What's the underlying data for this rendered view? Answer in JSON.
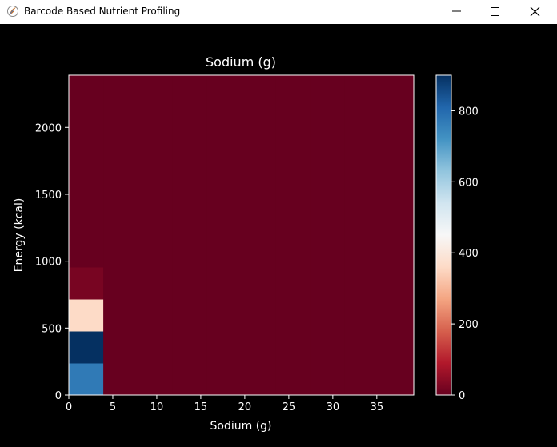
{
  "window": {
    "title": "Barcode Based Nutrient Profiling",
    "app_icon": "feather-logo-icon",
    "controls": {
      "minimize": "minimize-icon",
      "maximize": "maximize-icon",
      "close": "close-icon"
    }
  },
  "chart_data": {
    "type": "heatmap",
    "title": "Sodium (g)",
    "xlabel": "Sodium (g)",
    "ylabel": "Energy (kcal)",
    "colormap": "RdBu",
    "xlim": [
      0,
      39.2
    ],
    "ylim": [
      0,
      2390
    ],
    "x_ticks": [
      0,
      5,
      10,
      15,
      20,
      25,
      30,
      35
    ],
    "y_ticks": [
      0,
      500,
      1000,
      1500,
      2000
    ],
    "x_edges": [
      0,
      3.92,
      7.84,
      11.76,
      15.68,
      19.6,
      23.52,
      27.44,
      31.36,
      35.28,
      39.2
    ],
    "y_edges": [
      0,
      239,
      478,
      717,
      956,
      1195,
      1434,
      1673,
      1912,
      2151,
      2390
    ],
    "counts": [
      [
        770,
        0,
        0,
        0,
        0,
        0,
        0,
        0,
        0,
        0
      ],
      [
        900,
        0,
        0,
        0,
        0,
        0,
        0,
        0,
        0,
        0
      ],
      [
        360,
        0,
        0,
        0,
        0,
        0,
        0,
        0,
        0,
        0
      ],
      [
        20,
        0,
        0,
        0,
        0,
        0,
        0,
        0,
        0,
        0
      ],
      [
        0,
        0,
        0,
        0,
        0,
        0,
        0,
        0,
        0,
        0
      ],
      [
        0,
        0,
        0,
        0,
        0,
        0,
        0,
        0,
        0,
        0
      ],
      [
        0,
        0,
        0,
        0,
        0,
        0,
        0,
        0,
        0,
        0
      ],
      [
        0,
        0,
        0,
        0,
        0,
        0,
        0,
        0,
        0,
        0
      ],
      [
        0,
        0,
        0,
        0,
        0,
        0,
        0,
        0,
        0,
        0
      ],
      [
        0,
        0,
        0,
        0,
        0,
        0,
        0,
        0,
        0,
        0
      ]
    ],
    "colorbar": {
      "range": [
        0,
        900
      ],
      "ticks": [
        0,
        200,
        400,
        600,
        800
      ]
    },
    "grid": false
  },
  "colors": {
    "background": "#000000",
    "axes_edge": "#ffffff",
    "text": "#ffffff",
    "cmap_stops": [
      "#67001f",
      "#b2182b",
      "#d6604d",
      "#f4a582",
      "#fddbc7",
      "#f7f7f7",
      "#d1e5f0",
      "#92c5de",
      "#4393c3",
      "#2166ac",
      "#053061"
    ]
  }
}
